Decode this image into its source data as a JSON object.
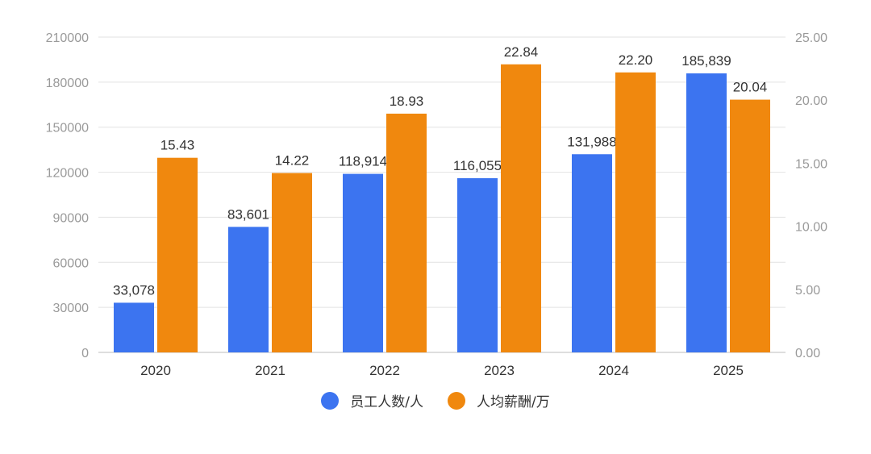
{
  "chart_data": {
    "type": "bar",
    "categories": [
      "2020",
      "2021",
      "2022",
      "2023",
      "2024",
      "2025"
    ],
    "series": [
      {
        "name": "员工人数/人",
        "axis": "left",
        "color": "#3C74F0",
        "values": [
          33078,
          83601,
          118914,
          116055,
          131988,
          185839
        ],
        "labels": [
          "33,078",
          "83,601",
          "118,914",
          "116,055",
          "131,988",
          "185,839"
        ]
      },
      {
        "name": "人均薪酬/万",
        "axis": "right",
        "color": "#F0880E",
        "values": [
          15.43,
          14.22,
          18.93,
          22.84,
          22.2,
          20.04
        ],
        "labels": [
          "15.43",
          "14.22",
          "18.93",
          "22.84",
          "22.20",
          "20.04"
        ]
      }
    ],
    "left_axis": {
      "ylim": [
        0,
        210000
      ],
      "ticks": [
        "0",
        "30000",
        "60000",
        "90000",
        "120000",
        "150000",
        "180000",
        "210000"
      ]
    },
    "right_axis": {
      "ylim": [
        0,
        25
      ],
      "ticks": [
        "0.00",
        "5.00",
        "10.00",
        "15.00",
        "20.00",
        "25.00"
      ]
    },
    "grid": true,
    "legend_position": "bottom-center"
  }
}
